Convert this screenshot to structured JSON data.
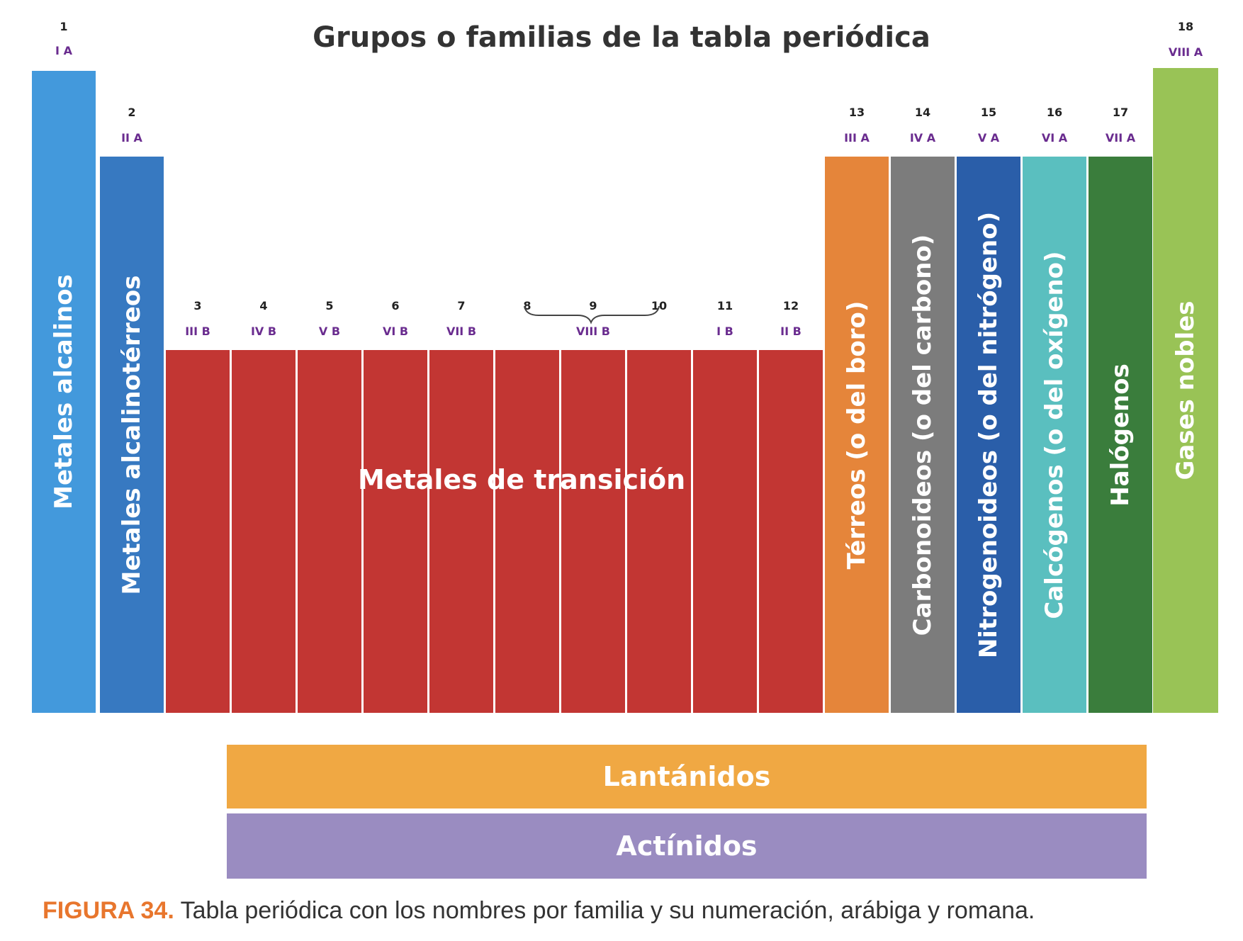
{
  "title": "Grupos o familias de la tabla periódica",
  "columns": [
    {
      "num": "1",
      "roman": "I A",
      "label": "Metales alcalinos",
      "color": "#4399dc"
    },
    {
      "num": "2",
      "roman": "II A",
      "label": "Metales alcalinotérreos",
      "color": "#3779c1"
    },
    {
      "num": "3",
      "roman": "III B",
      "color": "#c23633"
    },
    {
      "num": "4",
      "roman": "IV B",
      "color": "#c23633"
    },
    {
      "num": "5",
      "roman": "V B",
      "color": "#c23633"
    },
    {
      "num": "6",
      "roman": "VI B",
      "color": "#c23633"
    },
    {
      "num": "7",
      "roman": "VII B",
      "color": "#c23633"
    },
    {
      "num": "8",
      "color": "#c23633"
    },
    {
      "num": "9",
      "roman": "VIII B",
      "color": "#c23633"
    },
    {
      "num": "10",
      "color": "#c23633"
    },
    {
      "num": "11",
      "roman": "I B",
      "color": "#c23633"
    },
    {
      "num": "12",
      "roman": "II B",
      "color": "#c23633"
    },
    {
      "num": "13",
      "roman": "III A",
      "label": "Térreos (o del boro)",
      "color": "#e5853a"
    },
    {
      "num": "14",
      "roman": "IV A",
      "label": "Carbonoideos (o del carbono)",
      "color": "#7c7c7c"
    },
    {
      "num": "15",
      "roman": "V A",
      "label": "Nitrogenoideos (o del nitrógeno)",
      "color": "#2a5ea9"
    },
    {
      "num": "16",
      "roman": "VI A",
      "label": "Calcógenos (o del oxígeno)",
      "color": "#5abfbf"
    },
    {
      "num": "17",
      "roman": "VII A",
      "label": "Halógenos",
      "color": "#3a7d3c"
    },
    {
      "num": "18",
      "roman": "VIII A",
      "label": "Gases nobles",
      "color": "#99c356"
    }
  ],
  "transition_label": "Metales de transición",
  "lanthanides": {
    "label": "Lantánidos",
    "color": "#f0a843"
  },
  "actinides": {
    "label": "Actínidos",
    "color": "#9a8cc1"
  },
  "caption": {
    "figure": "FIGURA 34.",
    "text": " Tabla periódica con los nombres por familia y su numeración, arábiga y romana."
  }
}
